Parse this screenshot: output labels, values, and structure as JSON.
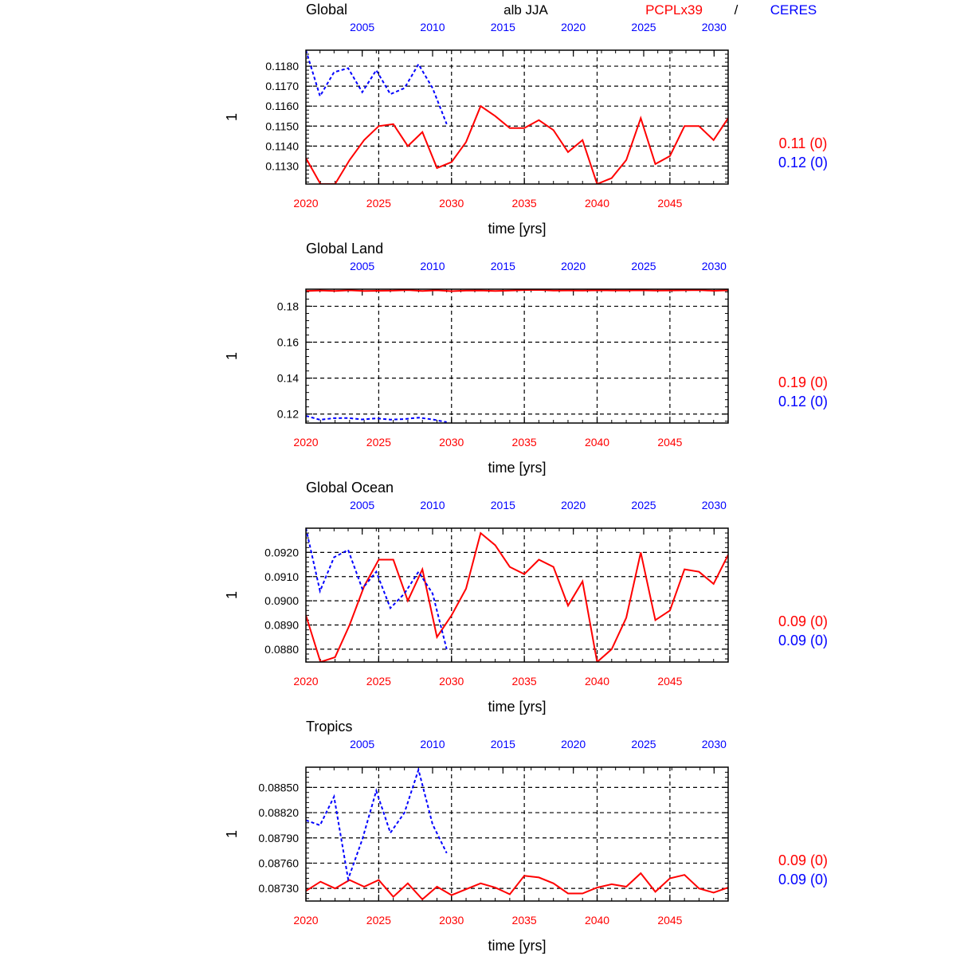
{
  "header": {
    "variable": "alb JJA",
    "model": "PCPLx39",
    "separator": "/",
    "obs": "CERES"
  },
  "colors": {
    "model": "#ff0000",
    "obs": "#0000ff",
    "axis": "#000000"
  },
  "chart_data": [
    {
      "type": "line",
      "title": "Global",
      "xlabel": "time [yrs]",
      "ylabel": "1",
      "xlim": [
        2020,
        2049
      ],
      "xticks": [
        2020,
        2025,
        2030,
        2035,
        2040,
        2045
      ],
      "x2lim": [
        2001,
        2031
      ],
      "x2ticks": [
        2005,
        2010,
        2015,
        2020,
        2025,
        2030
      ],
      "ylim": [
        0.1121,
        0.1188
      ],
      "yticks": [
        0.113,
        0.114,
        0.115,
        0.116,
        0.117,
        0.118
      ],
      "ytick_labels": [
        "0.1130",
        "0.1140",
        "0.1150",
        "0.1160",
        "0.1170",
        "0.1180"
      ],
      "grid": true,
      "stats": {
        "model": "0.11 (0)",
        "obs": "0.12 (0)"
      },
      "series": [
        {
          "name": "PCPLx39",
          "axis": "bottom",
          "style": "solid",
          "x": [
            2020,
            2021,
            2022,
            2023,
            2024,
            2025,
            2026,
            2027,
            2028,
            2029,
            2030,
            2031,
            2032,
            2033,
            2034,
            2035,
            2036,
            2037,
            2038,
            2039,
            2040,
            2041,
            2042,
            2043,
            2044,
            2045,
            2046,
            2047,
            2048,
            2049
          ],
          "values": [
            0.1134,
            0.1121,
            0.1121,
            0.1133,
            0.1143,
            0.115,
            0.1151,
            0.114,
            0.1147,
            0.1129,
            0.1132,
            0.1142,
            0.116,
            0.1155,
            0.1149,
            0.1149,
            0.1153,
            0.1148,
            0.1137,
            0.1143,
            0.1121,
            0.1124,
            0.1133,
            0.1154,
            0.1131,
            0.1135,
            0.115,
            0.115,
            0.1143,
            0.1154
          ]
        },
        {
          "name": "CERES",
          "axis": "top",
          "style": "dashed",
          "x": [
            2001,
            2002,
            2003,
            2004,
            2005,
            2006,
            2007,
            2008,
            2009,
            2010,
            2011
          ],
          "values": [
            0.1188,
            0.1165,
            0.1177,
            0.1179,
            0.1167,
            0.1178,
            0.1166,
            0.1169,
            0.1181,
            0.1169,
            0.1151
          ]
        }
      ]
    },
    {
      "type": "line",
      "title": "Global Land",
      "xlabel": "time [yrs]",
      "ylabel": "1",
      "xlim": [
        2020,
        2049
      ],
      "xticks": [
        2020,
        2025,
        2030,
        2035,
        2040,
        2045
      ],
      "x2lim": [
        2001,
        2031
      ],
      "x2ticks": [
        2005,
        2010,
        2015,
        2020,
        2025,
        2030
      ],
      "ylim": [
        0.115,
        0.1895
      ],
      "yticks": [
        0.12,
        0.14,
        0.16,
        0.18
      ],
      "ytick_labels": [
        "0.12",
        "0.14",
        "0.16",
        "0.18"
      ],
      "grid": true,
      "stats": {
        "model": "0.19 (0)",
        "obs": "0.12 (0)"
      },
      "series": [
        {
          "name": "PCPLx39",
          "axis": "bottom",
          "style": "solid",
          "x": [
            2020,
            2021,
            2022,
            2023,
            2024,
            2025,
            2026,
            2027,
            2028,
            2029,
            2030,
            2031,
            2032,
            2033,
            2034,
            2035,
            2036,
            2037,
            2038,
            2039,
            2040,
            2041,
            2042,
            2043,
            2044,
            2045,
            2046,
            2047,
            2048,
            2049
          ],
          "values": [
            0.1885,
            0.1888,
            0.1885,
            0.1889,
            0.1885,
            0.1886,
            0.1887,
            0.189,
            0.1885,
            0.1889,
            0.1884,
            0.1887,
            0.1888,
            0.1885,
            0.1887,
            0.189,
            0.1891,
            0.1887,
            0.1888,
            0.1887,
            0.1889,
            0.1888,
            0.1888,
            0.1889,
            0.1887,
            0.1888,
            0.1889,
            0.189,
            0.1886,
            0.1889
          ]
        },
        {
          "name": "CERES",
          "axis": "top",
          "style": "dashed",
          "x": [
            2001,
            2002,
            2003,
            2004,
            2005,
            2006,
            2007,
            2008,
            2009,
            2010,
            2011
          ],
          "values": [
            0.119,
            0.1168,
            0.1177,
            0.1178,
            0.117,
            0.1176,
            0.1169,
            0.1172,
            0.118,
            0.117,
            0.1155
          ]
        }
      ]
    },
    {
      "type": "line",
      "title": "Global Ocean",
      "xlabel": "time [yrs]",
      "ylabel": "1",
      "xlim": [
        2020,
        2049
      ],
      "xticks": [
        2020,
        2025,
        2030,
        2035,
        2040,
        2045
      ],
      "x2lim": [
        2001,
        2031
      ],
      "x2ticks": [
        2005,
        2010,
        2015,
        2020,
        2025,
        2030
      ],
      "ylim": [
        0.08747,
        0.093
      ],
      "yticks": [
        0.088,
        0.089,
        0.09,
        0.091,
        0.092
      ],
      "ytick_labels": [
        "0.0880",
        "0.0890",
        "0.0900",
        "0.0910",
        "0.0920"
      ],
      "grid": true,
      "stats": {
        "model": "0.09 (0)",
        "obs": "0.09 (0)"
      },
      "series": [
        {
          "name": "PCPLx39",
          "axis": "bottom",
          "style": "solid",
          "x": [
            2020,
            2021,
            2022,
            2023,
            2024,
            2025,
            2026,
            2027,
            2028,
            2029,
            2030,
            2031,
            2032,
            2033,
            2034,
            2035,
            2036,
            2037,
            2038,
            2039,
            2040,
            2041,
            2042,
            2043,
            2044,
            2045,
            2046,
            2047,
            2048,
            2049
          ],
          "values": [
            0.0894,
            0.08747,
            0.08767,
            0.089,
            0.0906,
            0.0917,
            0.0917,
            0.09,
            0.0913,
            0.0885,
            0.0894,
            0.0905,
            0.0928,
            0.0923,
            0.0914,
            0.0911,
            0.0917,
            0.0914,
            0.0898,
            0.0908,
            0.08747,
            0.088,
            0.0893,
            0.092,
            0.0892,
            0.0896,
            0.0913,
            0.0912,
            0.0907,
            0.0919
          ]
        },
        {
          "name": "CERES",
          "axis": "top",
          "style": "dashed",
          "x": [
            2001,
            2002,
            2003,
            2004,
            2005,
            2006,
            2007,
            2008,
            2009,
            2010,
            2011
          ],
          "values": [
            0.093,
            0.0904,
            0.0918,
            0.0921,
            0.0905,
            0.0912,
            0.0897,
            0.0903,
            0.0912,
            0.0903,
            0.088
          ]
        }
      ]
    },
    {
      "type": "line",
      "title": "Tropics",
      "xlabel": "time [yrs]",
      "ylabel": "1",
      "xlim": [
        2020,
        2049
      ],
      "xticks": [
        2020,
        2025,
        2030,
        2035,
        2040,
        2045
      ],
      "x2lim": [
        2001,
        2031
      ],
      "x2ticks": [
        2005,
        2010,
        2015,
        2020,
        2025,
        2030
      ],
      "ylim": [
        0.08715,
        0.08874
      ],
      "yticks": [
        0.0873,
        0.0876,
        0.0879,
        0.0882,
        0.0885
      ],
      "ytick_labels": [
        "0.08730",
        "0.08760",
        "0.08790",
        "0.08820",
        "0.08850"
      ],
      "grid": true,
      "stats": {
        "model": "0.09 (0)",
        "obs": "0.09 (0)"
      },
      "series": [
        {
          "name": "PCPLx39",
          "axis": "bottom",
          "style": "solid",
          "x": [
            2020,
            2021,
            2022,
            2023,
            2024,
            2025,
            2026,
            2027,
            2028,
            2029,
            2030,
            2031,
            2032,
            2033,
            2034,
            2035,
            2036,
            2037,
            2038,
            2039,
            2040,
            2041,
            2042,
            2043,
            2044,
            2045,
            2046,
            2047,
            2048,
            2049
          ],
          "values": [
            0.08727,
            0.08738,
            0.0873,
            0.0874,
            0.08732,
            0.0874,
            0.0872,
            0.08736,
            0.08717,
            0.08732,
            0.08722,
            0.08729,
            0.08736,
            0.08731,
            0.08723,
            0.08745,
            0.08743,
            0.08736,
            0.08724,
            0.08724,
            0.08731,
            0.08735,
            0.08732,
            0.08748,
            0.08726,
            0.08742,
            0.08746,
            0.0873,
            0.08725,
            0.08731
          ]
        },
        {
          "name": "CERES",
          "axis": "top",
          "style": "dashed",
          "x": [
            2001,
            2002,
            2003,
            2004,
            2005,
            2006,
            2007,
            2008,
            2009,
            2010,
            2011
          ],
          "values": [
            0.08811,
            0.08805,
            0.08839,
            0.08741,
            0.08788,
            0.08846,
            0.08796,
            0.0882,
            0.08871,
            0.08806,
            0.08772
          ]
        }
      ]
    }
  ]
}
